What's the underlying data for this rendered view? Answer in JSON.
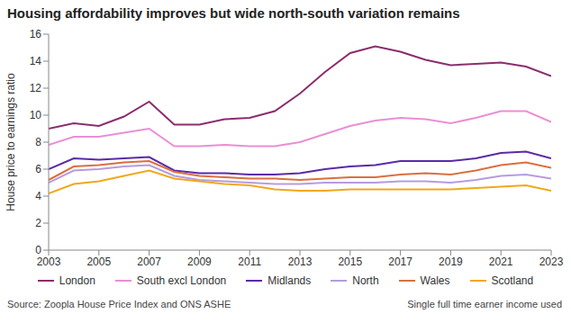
{
  "chart_data": {
    "type": "line",
    "title": "Housing affordability improves but wide north-south variation remains",
    "y_label": "House price to earnings ratio",
    "annotations": [
      "Source: Zoopla House Price Index and ONS ASHE",
      "Single full time earner income used"
    ],
    "x": [
      2003,
      2004,
      2005,
      2006,
      2007,
      2008,
      2009,
      2010,
      2011,
      2012,
      2013,
      2014,
      2015,
      2016,
      2017,
      2018,
      2019,
      2020,
      2021,
      2022,
      2023
    ],
    "series": [
      {
        "name": "London",
        "color": "#8b2d6e",
        "values": [
          9.0,
          9.4,
          9.2,
          9.9,
          11.0,
          9.3,
          9.3,
          9.7,
          9.8,
          10.3,
          11.6,
          13.2,
          14.6,
          15.1,
          14.7,
          14.1,
          13.7,
          13.8,
          13.9,
          13.6,
          12.9
        ]
      },
      {
        "name": "South excl London",
        "color": "#e98fd6",
        "values": [
          7.8,
          8.4,
          8.4,
          8.7,
          9.0,
          7.7,
          7.7,
          7.8,
          7.7,
          7.7,
          8.0,
          8.6,
          9.2,
          9.6,
          9.8,
          9.7,
          9.4,
          9.8,
          10.3,
          10.3,
          9.5
        ]
      },
      {
        "name": "Midlands",
        "color": "#5b2aa8",
        "values": [
          6.0,
          6.8,
          6.7,
          6.8,
          6.9,
          5.9,
          5.7,
          5.7,
          5.6,
          5.6,
          5.7,
          6.0,
          6.2,
          6.3,
          6.6,
          6.6,
          6.6,
          6.8,
          7.2,
          7.3,
          6.8
        ]
      },
      {
        "name": "North",
        "color": "#b79be0",
        "values": [
          5.0,
          5.9,
          6.0,
          6.2,
          6.3,
          5.5,
          5.2,
          5.1,
          5.0,
          4.9,
          4.9,
          5.0,
          5.0,
          5.0,
          5.1,
          5.1,
          5.0,
          5.2,
          5.5,
          5.6,
          5.3
        ]
      },
      {
        "name": "Wales",
        "color": "#d9703e",
        "values": [
          5.2,
          6.2,
          6.3,
          6.5,
          6.6,
          5.8,
          5.5,
          5.4,
          5.3,
          5.3,
          5.2,
          5.3,
          5.4,
          5.4,
          5.6,
          5.7,
          5.6,
          5.9,
          6.3,
          6.5,
          6.1
        ]
      },
      {
        "name": "Scotland",
        "color": "#f0a81c",
        "values": [
          4.2,
          4.9,
          5.1,
          5.5,
          5.9,
          5.3,
          5.1,
          4.9,
          4.8,
          4.5,
          4.4,
          4.4,
          4.5,
          4.5,
          4.5,
          4.5,
          4.5,
          4.6,
          4.7,
          4.8,
          4.4
        ]
      }
    ],
    "xlim": [
      2003,
      2023
    ],
    "xticks": [
      2003,
      2005,
      2007,
      2009,
      2011,
      2013,
      2015,
      2017,
      2019,
      2021,
      2023
    ],
    "ylim": [
      0,
      16
    ],
    "yticks": [
      0,
      2,
      4,
      6,
      8,
      10,
      12,
      14,
      16
    ],
    "grid": false,
    "legend": "bottom"
  }
}
